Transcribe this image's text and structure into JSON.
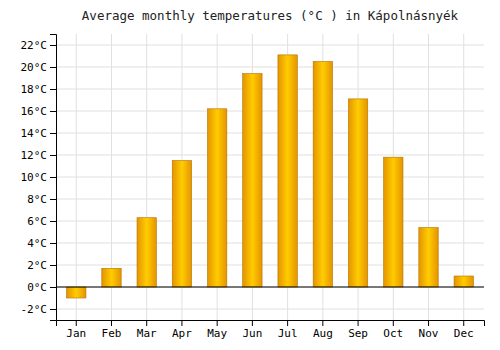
{
  "chart_data": {
    "type": "bar",
    "title": "Average monthly temperatures (°C ) in Kápolnásnyék",
    "categories": [
      "Jan",
      "Feb",
      "Mar",
      "Apr",
      "May",
      "Jun",
      "Jul",
      "Aug",
      "Sep",
      "Oct",
      "Nov",
      "Dec"
    ],
    "values": [
      -1.0,
      1.7,
      6.3,
      11.5,
      16.2,
      19.4,
      21.1,
      20.5,
      17.1,
      11.8,
      5.4,
      1.0
    ],
    "color": "#FFA500",
    "ylim": [
      -3,
      23
    ],
    "yticks": [
      {
        "value": -2,
        "label": "-2°C"
      },
      {
        "value": 0,
        "label": "0°C"
      },
      {
        "value": 2,
        "label": "2°C"
      },
      {
        "value": 4,
        "label": "4°C"
      },
      {
        "value": 6,
        "label": "6°C"
      },
      {
        "value": 8,
        "label": "8°C"
      },
      {
        "value": 10,
        "label": "10°C"
      },
      {
        "value": 12,
        "label": "12°C"
      },
      {
        "value": 14,
        "label": "14°C"
      },
      {
        "value": 16,
        "label": "16°C"
      },
      {
        "value": 18,
        "label": "18°C"
      },
      {
        "value": 20,
        "label": "20°C"
      },
      {
        "value": 22,
        "label": "22°C"
      }
    ],
    "grid": true
  }
}
